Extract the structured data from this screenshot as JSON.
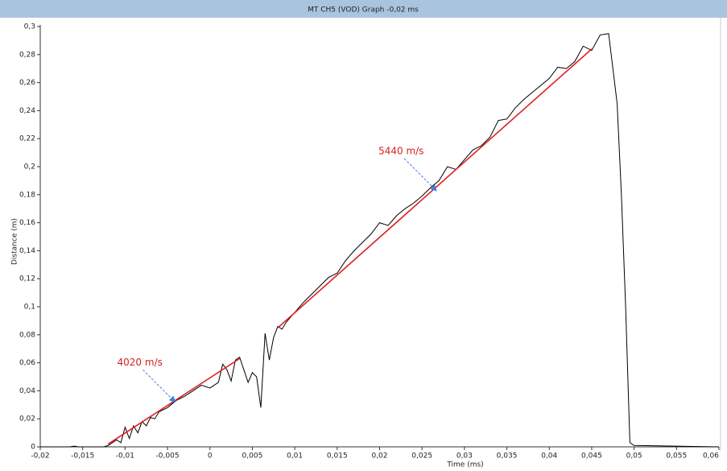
{
  "chart_data": {
    "type": "line",
    "title": "MT CH5 (VOD) Graph -0,02 ms",
    "xlabel": "Time (ms)",
    "ylabel": "Distance (m)",
    "xlim": [
      -0.02,
      0.06
    ],
    "ylim": [
      0,
      0.3
    ],
    "grid": false,
    "xticks": [
      {
        "value": -0.02,
        "label": "-0,02"
      },
      {
        "value": -0.015,
        "label": "-0,015"
      },
      {
        "value": -0.01,
        "label": "-0,01"
      },
      {
        "value": -0.005,
        "label": "-0,005"
      },
      0,
      {
        "value": 0.005,
        "label": "0,005"
      },
      {
        "value": 0.01,
        "label": "0,01"
      },
      {
        "value": 0.015,
        "label": "0,015"
      },
      {
        "value": 0.02,
        "label": "0,02"
      },
      {
        "value": 0.025,
        "label": "0,025"
      },
      {
        "value": 0.03,
        "label": "0,03"
      },
      {
        "value": 0.035,
        "label": "0,035"
      },
      {
        "value": 0.04,
        "label": "0,04"
      },
      {
        "value": 0.045,
        "label": "0,045"
      },
      {
        "value": 0.05,
        "label": "0,05"
      },
      {
        "value": 0.055,
        "label": "0,055"
      },
      {
        "value": 0.06,
        "label": "0,06"
      }
    ],
    "yticks": [
      0,
      {
        "value": 0.02,
        "label": "0,02"
      },
      {
        "value": 0.04,
        "label": "0,04"
      },
      {
        "value": 0.06,
        "label": "0,06"
      },
      {
        "value": 0.08,
        "label": "0,08"
      },
      {
        "value": 0.1,
        "label": "0,1"
      },
      {
        "value": 0.12,
        "label": "0,12"
      },
      {
        "value": 0.14,
        "label": "0,14"
      },
      {
        "value": 0.16,
        "label": "0,16"
      },
      {
        "value": 0.18,
        "label": "0,18"
      },
      {
        "value": 0.2,
        "label": "0,2"
      },
      {
        "value": 0.22,
        "label": "0,22"
      },
      {
        "value": 0.24,
        "label": "0,24"
      },
      {
        "value": 0.26,
        "label": "0,26"
      },
      {
        "value": 0.28,
        "label": "0,28"
      },
      {
        "value": 0.3,
        "label": "0,3"
      }
    ],
    "series": [
      {
        "color": "#000000",
        "x": [
          -0.02,
          -0.0165,
          -0.016,
          -0.0155,
          -0.0125,
          -0.012,
          -0.011,
          -0.0105,
          -0.01,
          -0.0095,
          -0.009,
          -0.0085,
          -0.008,
          -0.0075,
          -0.007,
          -0.0065,
          -0.006,
          -0.005,
          -0.004,
          -0.003,
          -0.002,
          -0.001,
          0,
          0.001,
          0.0015,
          0.002,
          0.0025,
          0.003,
          0.0035,
          0.004,
          0.0045,
          0.005,
          0.0055,
          0.006,
          0.0065,
          0.007,
          0.0075,
          0.008,
          0.0085,
          0.009,
          0.01,
          0.011,
          0.012,
          0.013,
          0.014,
          0.015,
          0.016,
          0.017,
          0.018,
          0.019,
          0.02,
          0.021,
          0.022,
          0.023,
          0.024,
          0.025,
          0.026,
          0.027,
          0.028,
          0.029,
          0.03,
          0.031,
          0.032,
          0.033,
          0.034,
          0.035,
          0.036,
          0.037,
          0.038,
          0.039,
          0.04,
          0.041,
          0.042,
          0.043,
          0.044,
          0.045,
          0.046,
          0.047,
          0.0475,
          0.048,
          0.0485,
          0.049,
          0.0495,
          0.05,
          0.06
        ],
        "values": [
          0,
          0,
          0.0005,
          0,
          0,
          0.001,
          0.005,
          0.003,
          0.014,
          0.006,
          0.015,
          0.01,
          0.018,
          0.015,
          0.021,
          0.02,
          0.025,
          0.028,
          0.033,
          0.036,
          0.04,
          0.044,
          0.042,
          0.046,
          0.059,
          0.055,
          0.047,
          0.062,
          0.064,
          0.055,
          0.046,
          0.053,
          0.05,
          0.028,
          0.081,
          0.062,
          0.078,
          0.086,
          0.084,
          0.089,
          0.096,
          0.103,
          0.109,
          0.115,
          0.121,
          0.124,
          0.133,
          0.14,
          0.146,
          0.152,
          0.16,
          0.158,
          0.165,
          0.17,
          0.174,
          0.179,
          0.185,
          0.19,
          0.2,
          0.198,
          0.205,
          0.212,
          0.215,
          0.221,
          0.233,
          0.234,
          0.242,
          0.248,
          0.253,
          0.258,
          0.263,
          0.271,
          0.27,
          0.275,
          0.286,
          0.283,
          0.294,
          0.295,
          0.27,
          0.245,
          0.18,
          0.1,
          0.003,
          0.001,
          0
        ]
      },
      {
        "color": "#e02020",
        "x": [
          -0.012,
          0.0035
        ],
        "values": [
          0.002,
          0.063
        ]
      },
      {
        "color": "#e02020",
        "x": [
          0.008,
          0.045
        ],
        "values": [
          0.085,
          0.284
        ]
      }
    ],
    "annotations": [
      {
        "text": "4020 m/s",
        "x": -0.0041,
        "y": 0.032
      },
      {
        "text": "5440 m/s",
        "x": 0.0267,
        "y": 0.1828
      }
    ]
  }
}
